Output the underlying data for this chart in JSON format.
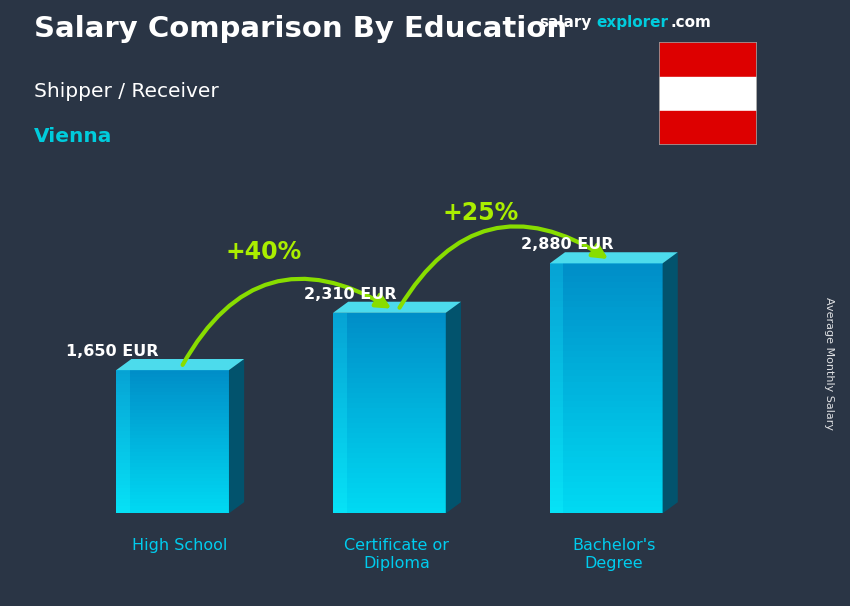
{
  "title_main": "Salary Comparison By Education",
  "title_sub": "Shipper / Receiver",
  "title_city": "Vienna",
  "ylabel": "Average Monthly Salary",
  "website_salary": "salary",
  "website_explorer": "explorer",
  "website_dot_com": ".com",
  "categories": [
    "High School",
    "Certificate or\nDiploma",
    "Bachelor's\nDegree"
  ],
  "values": [
    1650,
    2310,
    2880
  ],
  "value_labels": [
    "1,650 EUR",
    "2,310 EUR",
    "2,880 EUR"
  ],
  "pct_labels": [
    "+40%",
    "+25%"
  ],
  "bar_front_color": "#00b8d9",
  "bar_top_color": "#40e0f0",
  "bar_side_color": "#006080",
  "bar_highlight": "#00d8f0",
  "bg_color": "#2a3545",
  "text_white": "#ffffff",
  "text_cyan": "#00ccdd",
  "text_green": "#aaee00",
  "arrow_green": "#88dd00",
  "label_color": "#ffffff",
  "cat_label_color": "#00ccee",
  "flag_red": "#dd0000",
  "flag_white": "#ffffff"
}
